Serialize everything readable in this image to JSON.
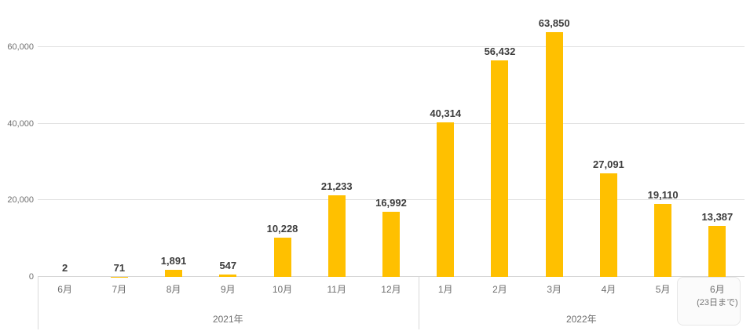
{
  "chart_data": {
    "type": "bar",
    "title": "",
    "xlabel": "",
    "ylabel": "",
    "categories": [
      "6月",
      "7月",
      "8月",
      "9月",
      "10月",
      "11月",
      "12月",
      "1月",
      "2月",
      "3月",
      "4月",
      "5月",
      "6月"
    ],
    "category_sublabels": [
      "",
      "",
      "",
      "",
      "",
      "",
      "",
      "",
      "",
      "",
      "",
      "",
      "(23日まで)"
    ],
    "values": [
      2,
      71,
      1891,
      547,
      10228,
      21233,
      16992,
      40314,
      56432,
      63850,
      27091,
      19110,
      13387
    ],
    "value_labels": [
      "2",
      "71",
      "1,891",
      "547",
      "10,228",
      "21,233",
      "16,992",
      "40,314",
      "56,432",
      "63,850",
      "27,091",
      "19,110",
      "13,387"
    ],
    "groups": [
      {
        "label": "2021年",
        "start": 0,
        "end": 6
      },
      {
        "label": "2022年",
        "start": 7,
        "end": 12
      }
    ],
    "yticks": [
      0,
      20000,
      40000,
      60000
    ],
    "ytick_labels": [
      "0",
      "20,000",
      "40,000",
      "60,000"
    ],
    "ylim": [
      0,
      72260
    ],
    "grid": true,
    "legend": "none",
    "bar_color": "#FFC000"
  },
  "colors": {
    "bar": "#FFC000",
    "value_label": "#3D3D3D",
    "axis_text": "#6F6F6F",
    "gridline": "#E2E2E2",
    "axis_line": "#D6D6D6",
    "separator": "#D9D9D9",
    "background": "#FFFFFF",
    "highlight_card_bg": "#FBFBFB",
    "highlight_card_border": "#E7E7E7"
  }
}
